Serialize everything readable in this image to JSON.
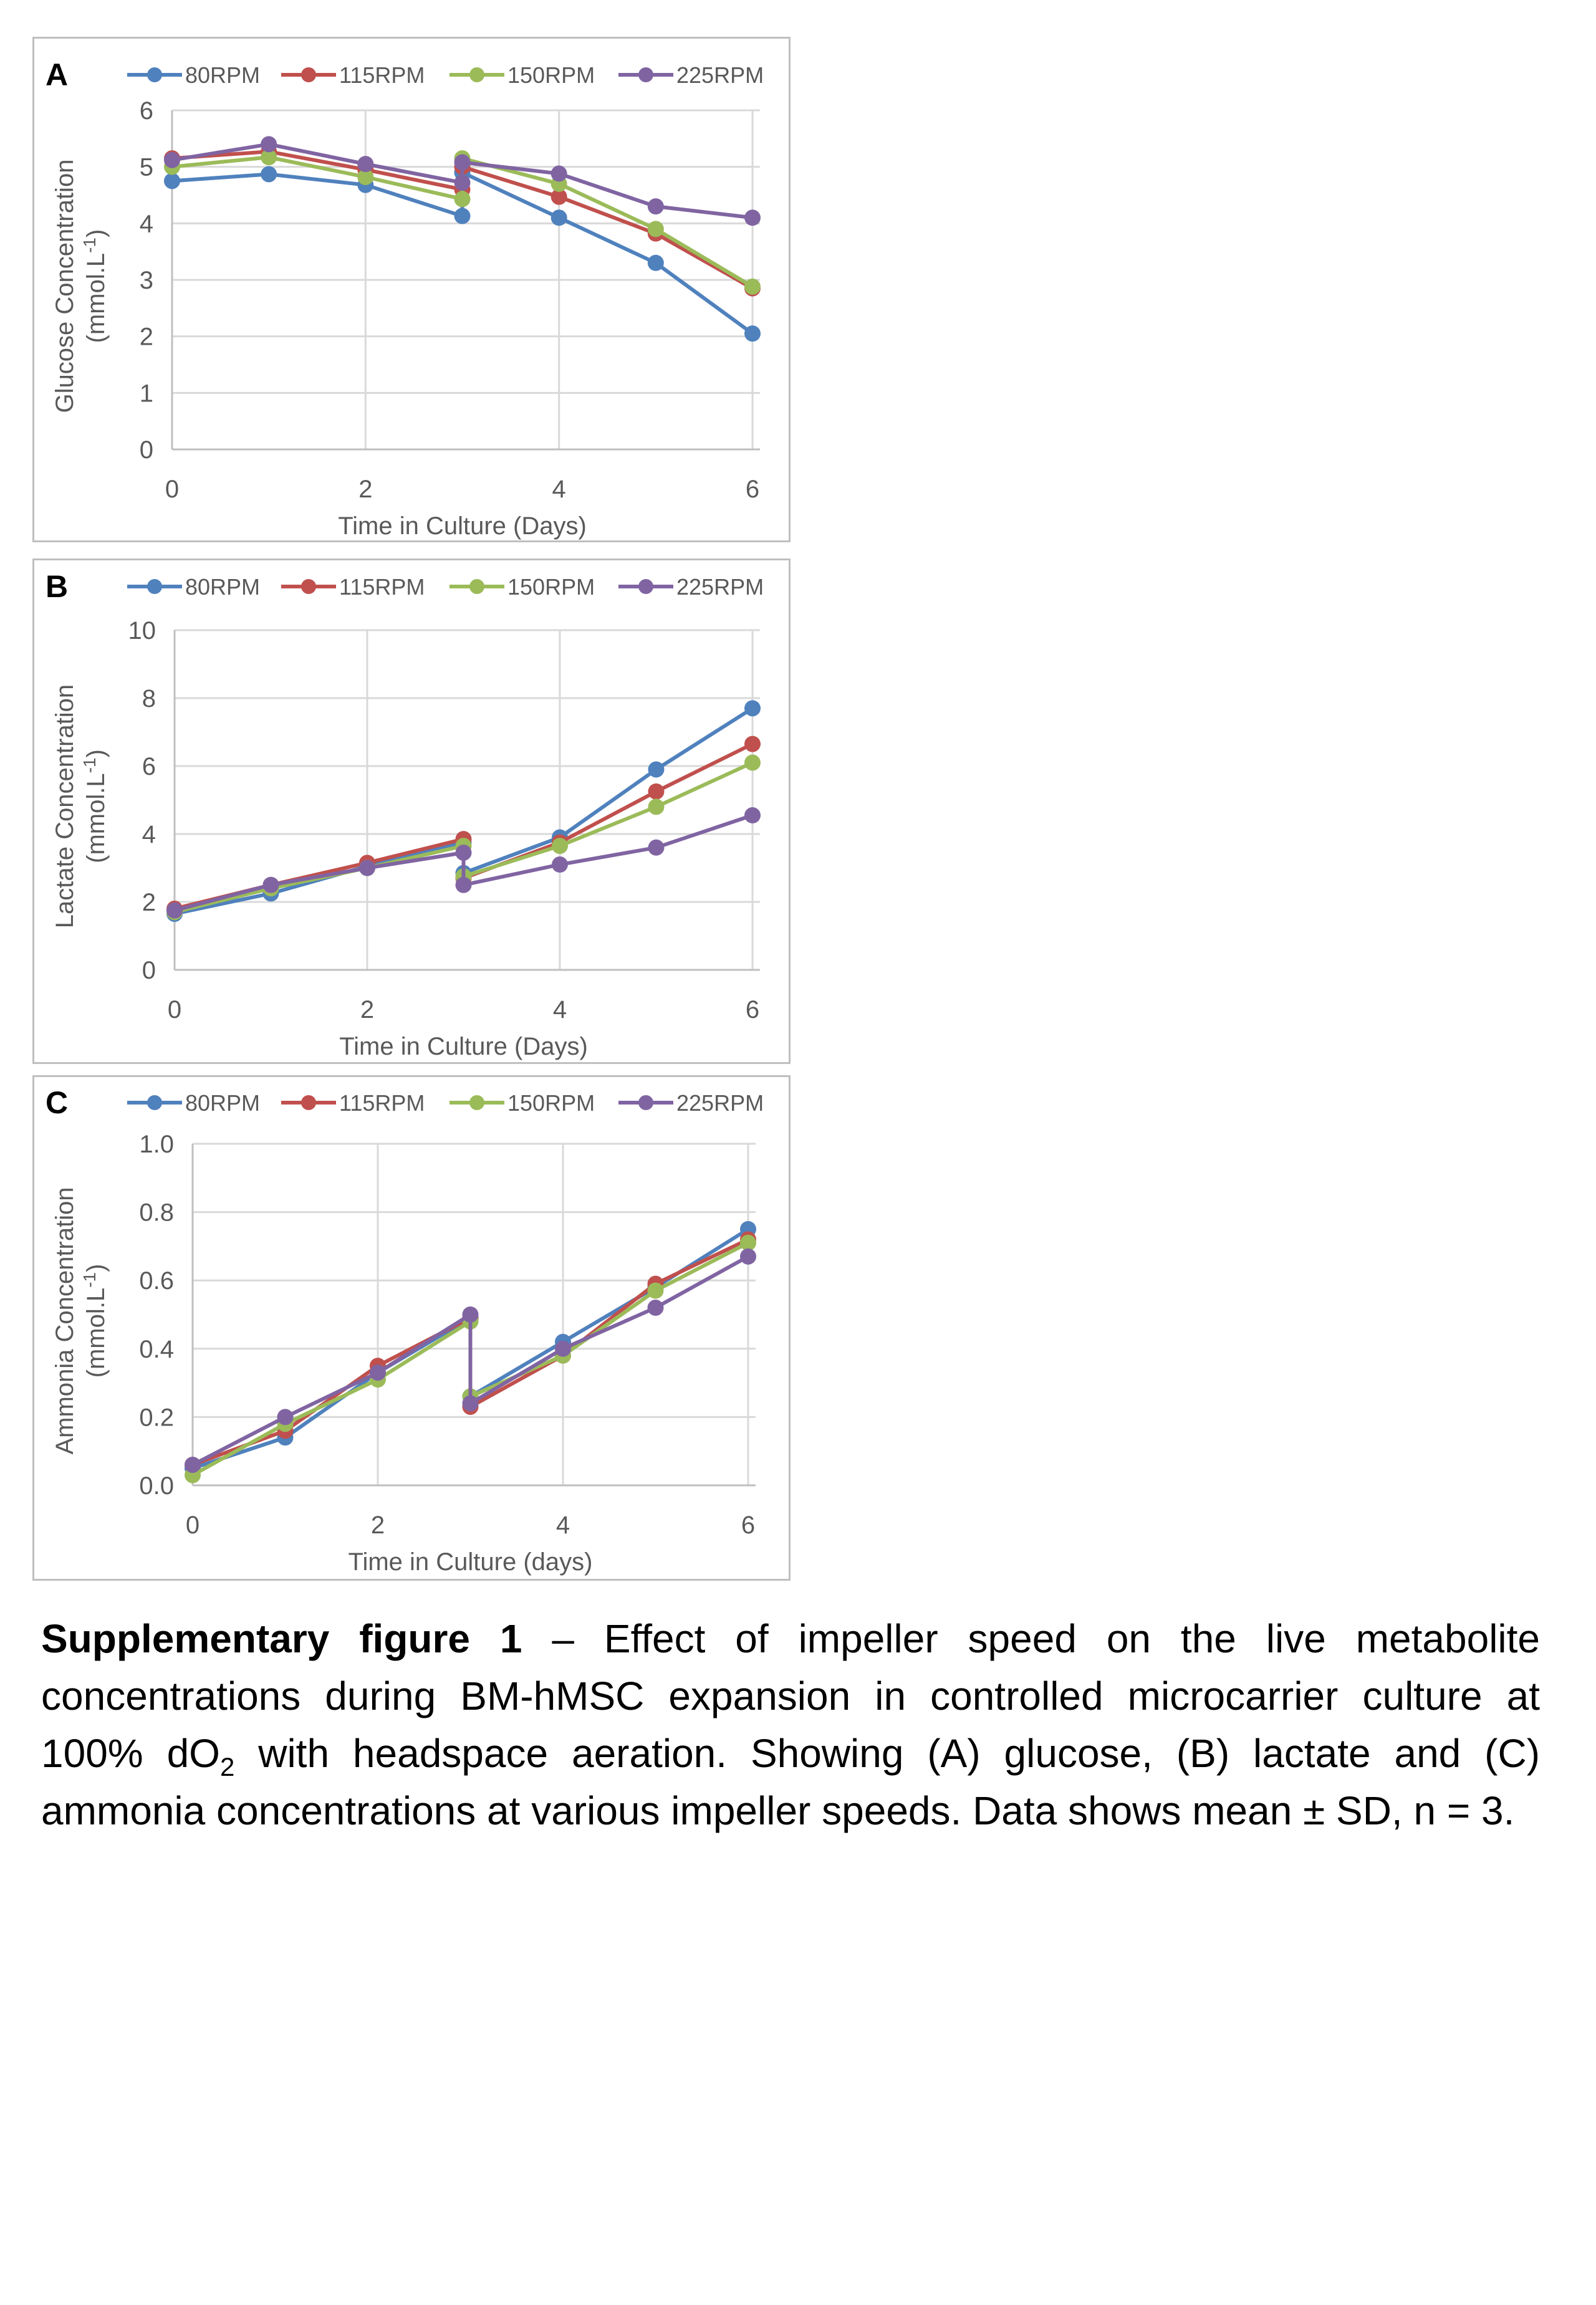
{
  "chart_data": [
    {
      "type": "line",
      "panel_label": "A",
      "xlabel": "Time in Culture (Days)",
      "ylabel": "Glucose Concentration",
      "ylabel_units": "(mmol.L-1)",
      "ylabel_units_parts": [
        "(mmol.L",
        "-1",
        ")"
      ],
      "xlim": [
        0,
        6
      ],
      "ylim": [
        0,
        6
      ],
      "xticks": [
        "0",
        "2",
        "4",
        "6"
      ],
      "yticks": [
        "0",
        "1",
        "2",
        "3",
        "4",
        "5",
        "6"
      ],
      "grid": true,
      "legend_position": "top",
      "x": [
        0,
        1,
        2,
        3,
        3,
        4,
        5,
        6
      ],
      "series": [
        {
          "name": "80RPM",
          "color": "#4f81bd",
          "values": [
            4.75,
            4.87,
            4.68,
            4.13,
            4.9,
            4.1,
            3.3,
            2.05
          ]
        },
        {
          "name": "115RPM",
          "color": "#c0504d",
          "values": [
            5.15,
            5.27,
            4.95,
            4.6,
            5.0,
            4.47,
            3.82,
            2.85
          ]
        },
        {
          "name": "150RPM",
          "color": "#9bbb59",
          "values": [
            5.0,
            5.17,
            4.82,
            4.43,
            5.15,
            4.7,
            3.9,
            2.88
          ]
        },
        {
          "name": "225RPM",
          "color": "#8064a2",
          "values": [
            5.12,
            5.4,
            5.05,
            4.72,
            5.08,
            4.88,
            4.3,
            4.1
          ]
        }
      ]
    },
    {
      "type": "line",
      "panel_label": "B",
      "xlabel": "Time in Culture (Days)",
      "ylabel": "Lactate Concentration",
      "ylabel_units": "(mmol.L-1)",
      "ylabel_units_parts": [
        "(mmol.L",
        "-1",
        ")"
      ],
      "xlim": [
        0,
        6
      ],
      "ylim": [
        0,
        10
      ],
      "xticks": [
        "0",
        "2",
        "4",
        "6"
      ],
      "yticks": [
        "0",
        "2",
        "4",
        "6",
        "8",
        "10"
      ],
      "grid": true,
      "legend_position": "top",
      "x": [
        0,
        1,
        2,
        3,
        3,
        4,
        5,
        6
      ],
      "series": [
        {
          "name": "80RPM",
          "color": "#4f81bd",
          "values": [
            1.65,
            2.25,
            3.05,
            3.75,
            2.85,
            3.9,
            5.9,
            7.7
          ]
        },
        {
          "name": "115RPM",
          "color": "#c0504d",
          "values": [
            1.8,
            2.5,
            3.15,
            3.85,
            2.7,
            3.75,
            5.25,
            6.65
          ]
        },
        {
          "name": "150RPM",
          "color": "#9bbb59",
          "values": [
            1.7,
            2.4,
            3.0,
            3.65,
            2.75,
            3.65,
            4.8,
            6.1
          ]
        },
        {
          "name": "225RPM",
          "color": "#8064a2",
          "values": [
            1.75,
            2.5,
            3.0,
            3.45,
            2.5,
            3.1,
            3.6,
            4.55
          ]
        }
      ]
    },
    {
      "type": "line",
      "panel_label": "C",
      "xlabel": "Time in Culture (days)",
      "ylabel": "Ammonia Concentration",
      "ylabel_units": "(mmol.L-1)",
      "ylabel_units_parts": [
        "(mmol.L",
        "-1",
        ")"
      ],
      "xlim": [
        0,
        6
      ],
      "ylim": [
        0,
        1
      ],
      "xticks": [
        "0",
        "2",
        "4",
        "6"
      ],
      "yticks": [
        "0.0",
        "0.2",
        "0.4",
        "0.6",
        "0.8",
        "1.0"
      ],
      "grid": true,
      "legend_position": "top",
      "x": [
        0,
        1,
        2,
        3,
        3,
        4,
        5,
        6
      ],
      "series": [
        {
          "name": "80RPM",
          "color": "#4f81bd",
          "values": [
            0.05,
            0.14,
            0.33,
            0.49,
            0.26,
            0.42,
            0.58,
            0.75
          ]
        },
        {
          "name": "115RPM",
          "color": "#c0504d",
          "values": [
            0.06,
            0.16,
            0.35,
            0.49,
            0.23,
            0.38,
            0.59,
            0.72
          ]
        },
        {
          "name": "150RPM",
          "color": "#9bbb59",
          "values": [
            0.03,
            0.18,
            0.31,
            0.48,
            0.26,
            0.38,
            0.57,
            0.71
          ]
        },
        {
          "name": "225RPM",
          "color": "#8064a2",
          "values": [
            0.06,
            0.2,
            0.33,
            0.5,
            0.24,
            0.4,
            0.52,
            0.67
          ]
        }
      ]
    }
  ],
  "caption": {
    "bold": "Supplementary figure 1",
    "text_before_sub": " – Effect of impeller speed on the live metabolite concentrations during BM-hMSC expansion in controlled microcarrier culture at 100% dO",
    "sub": "2",
    "text_after_sub": " with headspace aeration. Showing (A) glucose, (B) lactate and (C) ammonia concentrations at various impeller speeds. Data shows mean ± SD, n = 3."
  }
}
